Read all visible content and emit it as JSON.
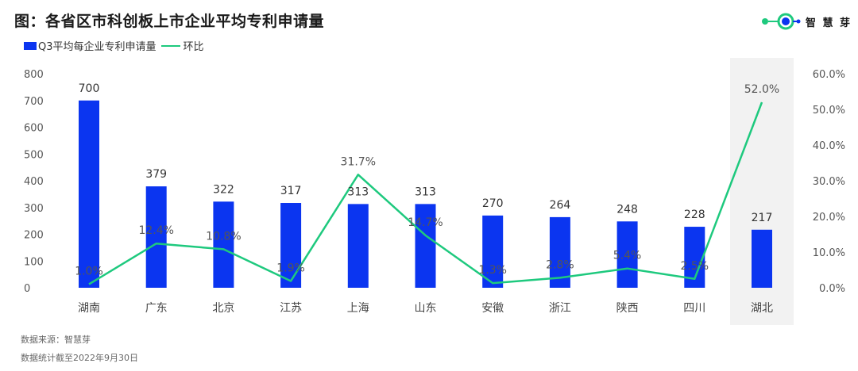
{
  "title": "图：各省区市科创板上市企业平均专利申请量",
  "logo": {
    "text": "智 慧 芽",
    "icon": "zhihuiya-logo-icon",
    "colors": {
      "green": "#1ec97e",
      "blue": "#0b35f0"
    }
  },
  "legend": {
    "bar_label": "Q3平均每企业专利申请量",
    "line_label": "环比"
  },
  "colors": {
    "bar": "#0b35f0",
    "line": "#1ec97e",
    "highlight_bg": "#f2f2f2",
    "axis_text": "#555555"
  },
  "chart_data": {
    "type": "bar",
    "categories": [
      "湖南",
      "广东",
      "北京",
      "江苏",
      "上海",
      "山东",
      "安徽",
      "浙江",
      "陕西",
      "四川",
      "湖北"
    ],
    "series": [
      {
        "name": "Q3平均每企业专利申请量",
        "type": "bar",
        "axis": "left",
        "values": [
          700,
          379,
          322,
          317,
          313,
          313,
          270,
          264,
          248,
          228,
          217
        ]
      },
      {
        "name": "环比",
        "type": "line",
        "axis": "right",
        "values": [
          1.0,
          12.4,
          10.8,
          1.9,
          31.7,
          14.7,
          1.3,
          2.8,
          5.4,
          2.5,
          52.0
        ]
      }
    ],
    "bar_labels": [
      "700",
      "379",
      "322",
      "317",
      "313",
      "313",
      "270",
      "264",
      "248",
      "228",
      "217"
    ],
    "line_labels": [
      "1.0%",
      "12.4%",
      "10.8%",
      "1.9%",
      "31.7%",
      "14.7%",
      "1.3%",
      "2.8%",
      "5.4%",
      "2.5%",
      "52.0%"
    ],
    "y_left": {
      "min": 0,
      "max": 800,
      "ticks": [
        "0",
        "100",
        "200",
        "300",
        "400",
        "500",
        "600",
        "700",
        "800"
      ]
    },
    "y_right": {
      "min": 0,
      "max": 60,
      "ticks": [
        "0.0%",
        "10.0%",
        "20.0%",
        "30.0%",
        "40.0%",
        "50.0%",
        "60.0%"
      ]
    },
    "highlight_category": "湖北",
    "grid": false,
    "legend_position": "top-left"
  },
  "footer": {
    "source": "数据来源：智慧芽",
    "note": "数据统计截至2022年9月30日"
  }
}
